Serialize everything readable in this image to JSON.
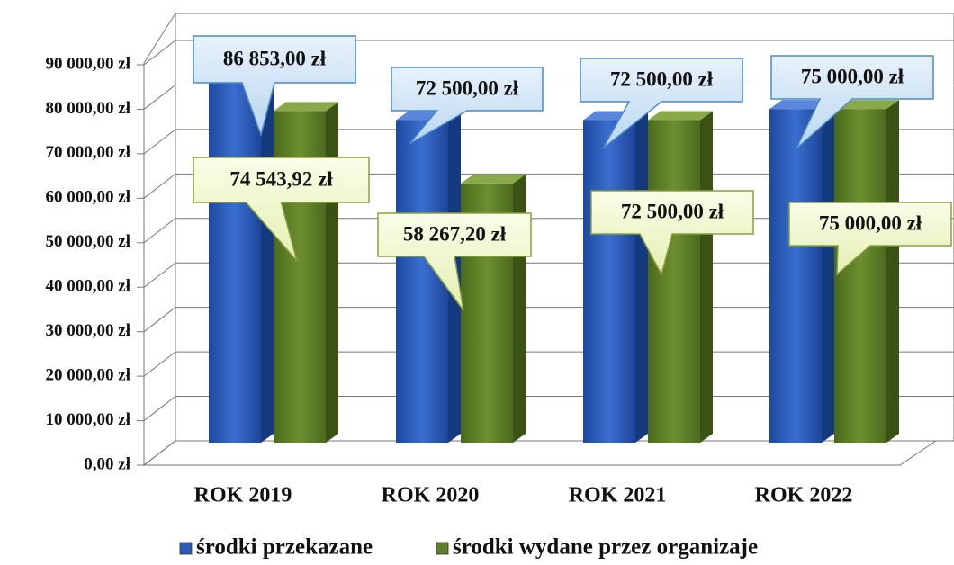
{
  "chart_data": {
    "type": "bar3d",
    "categories": [
      "ROK 2019",
      "ROK 2020",
      "ROK 2021",
      "ROK 2022"
    ],
    "series": [
      {
        "name": "środki przekazane",
        "color": "#2b5bb5",
        "values": [
          86853,
          72500,
          72500,
          75000
        ],
        "value_labels": [
          "86 853,00 zł",
          "72 500,00 zł",
          "72 500,00 zł",
          "75 000,00 zł"
        ]
      },
      {
        "name": "środki wydane przez organizaje",
        "color": "#5f7f2a",
        "values": [
          74543.92,
          58267.2,
          72500,
          75000
        ],
        "value_labels": [
          "74 543,92 zł",
          "58 267,20 zł",
          "72 500,00 zł",
          "75 000,00 zł"
        ]
      }
    ],
    "ylim": [
      0,
      90000
    ],
    "yticks": [
      {
        "value": 0,
        "label": "0,00 zł"
      },
      {
        "value": 10000,
        "label": "10 000,00 zł"
      },
      {
        "value": 20000,
        "label": "20 000,00 zł"
      },
      {
        "value": 30000,
        "label": "30 000,00 zł"
      },
      {
        "value": 40000,
        "label": "40 000,00 zł"
      },
      {
        "value": 50000,
        "label": "50 000,00 zł"
      },
      {
        "value": 60000,
        "label": "60 000,00 zł"
      },
      {
        "value": 70000,
        "label": "70 000,00 zł"
      },
      {
        "value": 80000,
        "label": "80 000,00 zł"
      },
      {
        "value": 90000,
        "label": "90 000,00 zł"
      }
    ],
    "grid": true,
    "legend": "bottom"
  }
}
